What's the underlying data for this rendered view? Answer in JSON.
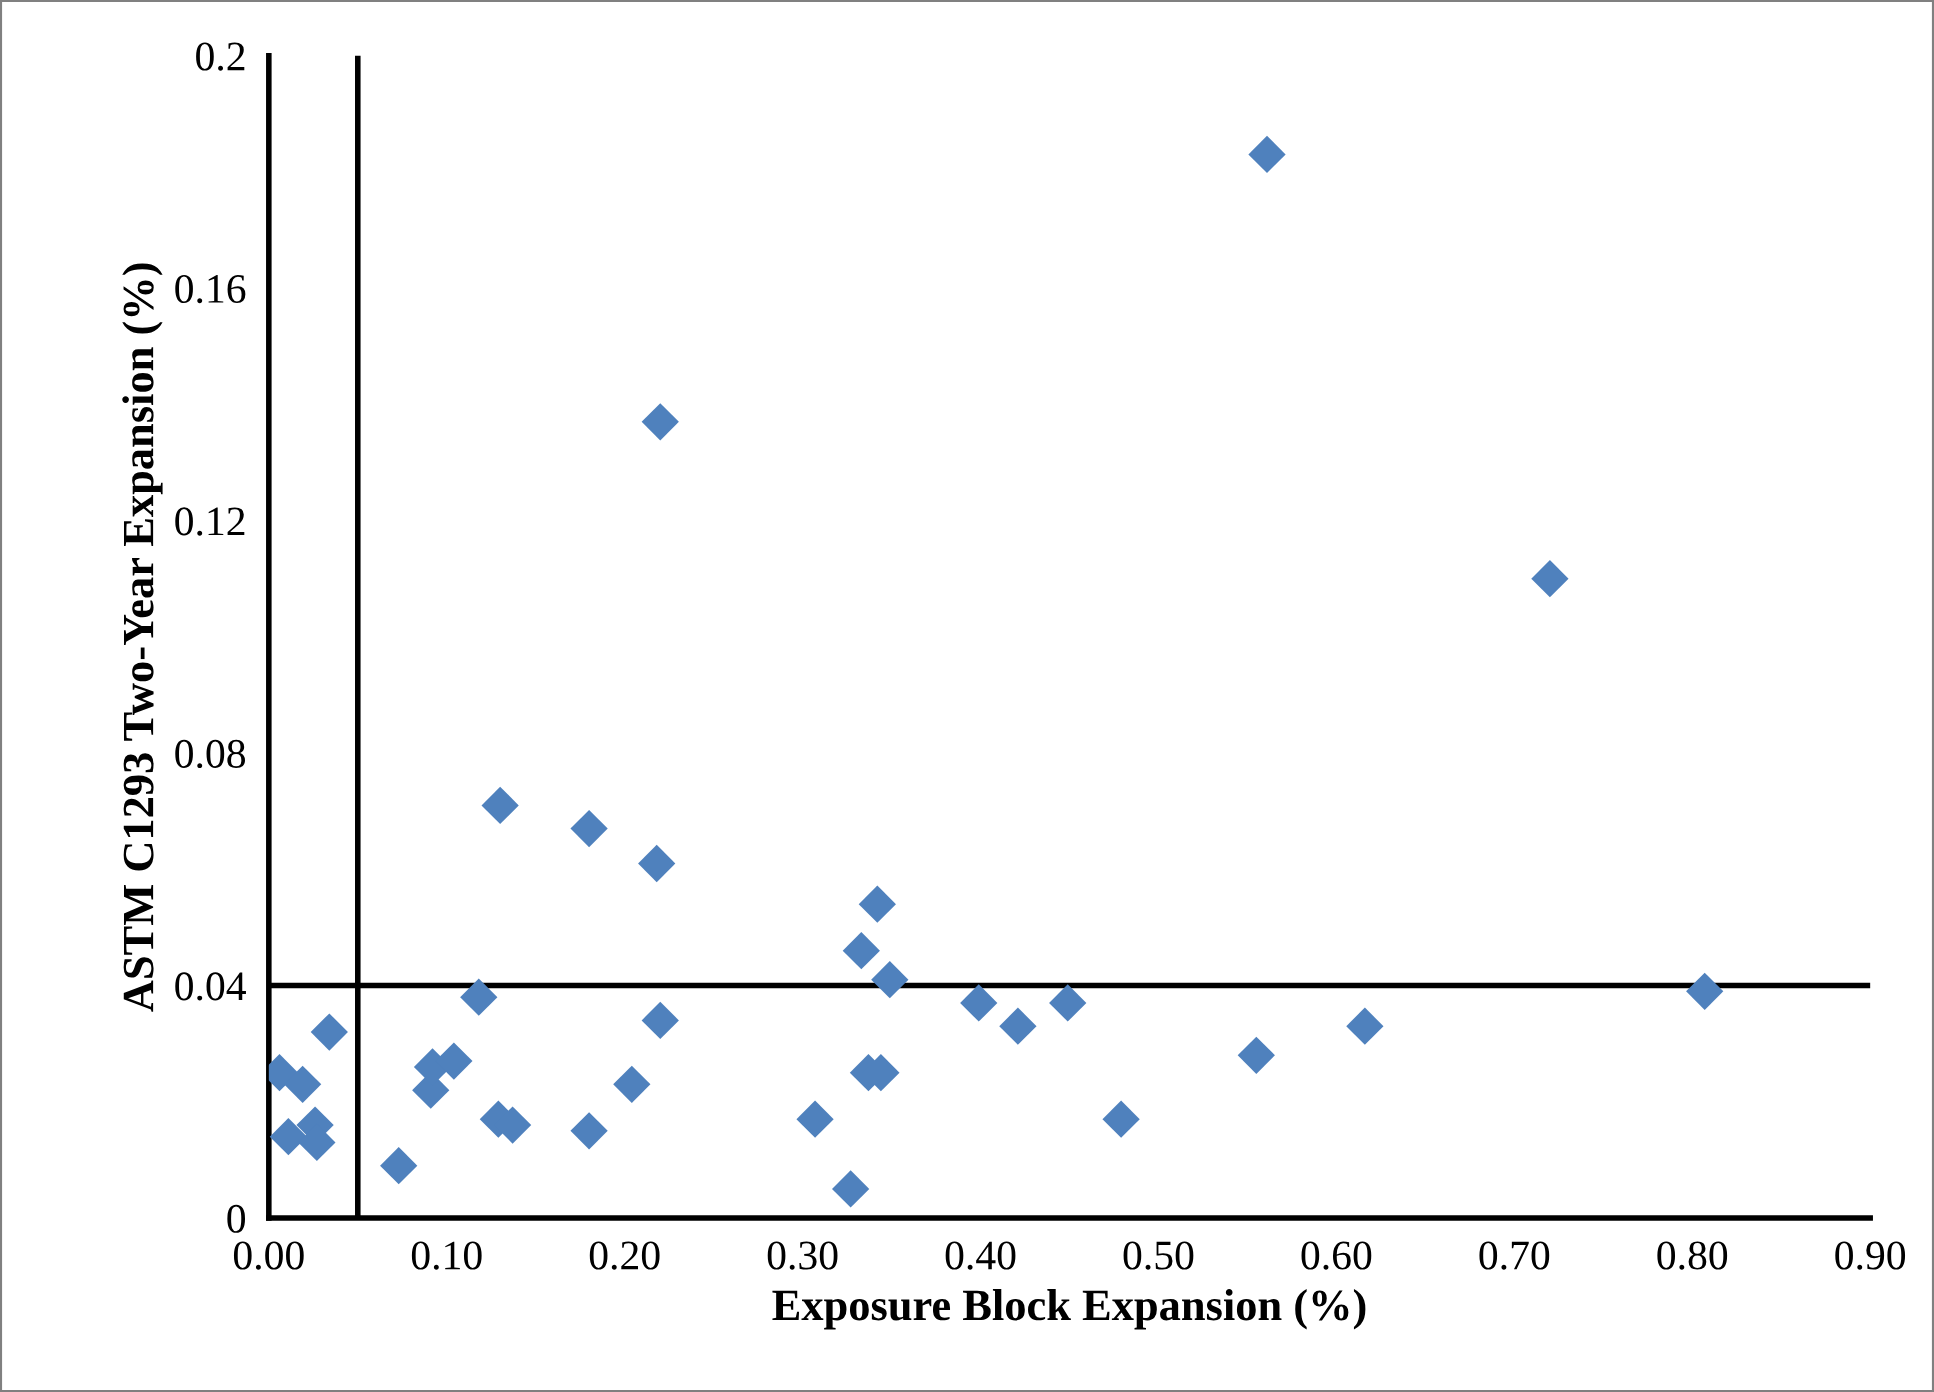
{
  "chart_data": {
    "type": "scatter",
    "xlabel": "Exposure Block Expansion (%)",
    "ylabel": "ASTM C1293 Two-Year Expansion (%)",
    "marker": "diamond",
    "grid": false,
    "legend": false,
    "xlim": [
      0,
      0.9
    ],
    "ylim": [
      0,
      0.2
    ],
    "xticks": [
      {
        "value": 0,
        "label": "0.00"
      },
      {
        "value": 0.1,
        "label": "0.10"
      },
      {
        "value": 0.2,
        "label": "0.20"
      },
      {
        "value": 0.3,
        "label": "0.30"
      },
      {
        "value": 0.4,
        "label": "0.40"
      },
      {
        "value": 0.5,
        "label": "0.50"
      },
      {
        "value": 0.6,
        "label": "0.60"
      },
      {
        "value": 0.7,
        "label": "0.70"
      },
      {
        "value": 0.8,
        "label": "0.80"
      },
      {
        "value": 0.9,
        "label": "0.90"
      }
    ],
    "yticks": [
      0,
      0.04,
      0.08,
      0.12,
      0.16,
      0.2
    ],
    "ref_lines": [
      {
        "axis": "y",
        "value": 0.04,
        "color": "#000000"
      },
      {
        "axis": "x",
        "value": 0.05,
        "color": "#000000"
      }
    ],
    "series": [
      {
        "color": "#4f81bd",
        "x": [
          0.006,
          0.011,
          0.019,
          0.026,
          0.027,
          0.034,
          0.073,
          0.091,
          0.092,
          0.104,
          0.118,
          0.13,
          0.129,
          0.137,
          0.18,
          0.18,
          0.204,
          0.218,
          0.22,
          0.22,
          0.307,
          0.327,
          0.333,
          0.337,
          0.344,
          0.342,
          0.349,
          0.399,
          0.421,
          0.449,
          0.479,
          0.555,
          0.561,
          0.616,
          0.72,
          0.807
        ],
        "values": [
          0.025,
          0.014,
          0.023,
          0.016,
          0.013,
          0.032,
          0.009,
          0.022,
          0.026,
          0.027,
          0.038,
          0.071,
          0.017,
          0.016,
          0.067,
          0.015,
          0.023,
          0.061,
          0.034,
          0.137,
          0.017,
          0.005,
          0.046,
          0.025,
          0.025,
          0.054,
          0.041,
          0.037,
          0.033,
          0.037,
          0.017,
          0.028,
          0.183,
          0.033,
          0.11,
          0.039
        ]
      }
    ]
  }
}
